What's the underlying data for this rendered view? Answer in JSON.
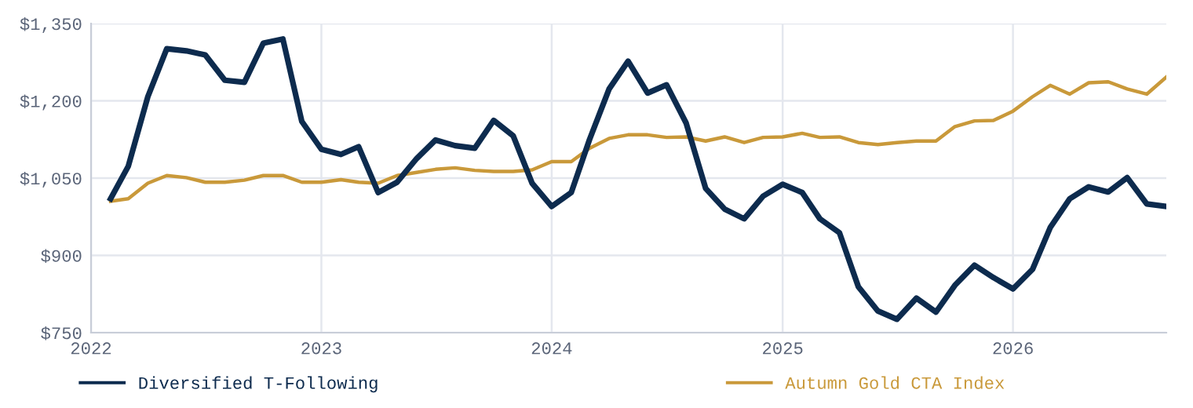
{
  "chart_data": {
    "type": "line",
    "x": [
      "2022-02",
      "2022-03",
      "2022-04",
      "2022-05",
      "2022-06",
      "2022-07",
      "2022-08",
      "2022-09",
      "2022-10",
      "2022-11",
      "2022-12",
      "2023-01",
      "2023-02",
      "2023-03",
      "2023-04",
      "2023-05",
      "2023-06",
      "2023-07",
      "2023-08",
      "2023-09",
      "2023-10",
      "2023-11",
      "2023-12",
      "2024-01",
      "2024-02",
      "2024-03",
      "2024-04",
      "2024-05",
      "2024-06",
      "2024-07",
      "2024-08",
      "2024-09",
      "2024-10",
      "2024-11",
      "2024-12",
      "2025-01",
      "2025-02",
      "2025-03",
      "2025-04",
      "2025-05",
      "2025-06",
      "2025-07",
      "2025-08",
      "2025-09",
      "2025-10",
      "2025-11",
      "2025-12",
      "2026-01",
      "2026-02",
      "2026-03",
      "2026-04",
      "2026-05",
      "2026-06",
      "2026-07",
      "2026-08",
      "2026-09"
    ],
    "series": [
      {
        "name": "Diversified T-Following",
        "color": "#0d2b4e",
        "values": [
          1010,
          1073,
          1208,
          1301,
          1297,
          1289,
          1240,
          1236,
          1312,
          1320,
          1160,
          1106,
          1096,
          1111,
          1022,
          1042,
          1088,
          1124,
          1113,
          1108,
          1162,
          1132,
          1040,
          995,
          1022,
          1125,
          1223,
          1277,
          1215,
          1231,
          1157,
          1030,
          990,
          971,
          1015,
          1038,
          1022,
          971,
          944,
          839,
          792,
          776,
          817,
          790,
          842,
          881,
          857,
          835,
          873,
          954,
          1010,
          1033,
          1023,
          1051,
          1000,
          995
        ]
      },
      {
        "name": "Autumn Gold CTA Index",
        "color": "#c9993a",
        "values": [
          1005,
          1010,
          1040,
          1055,
          1051,
          1042,
          1042,
          1046,
          1055,
          1055,
          1042,
          1042,
          1047,
          1042,
          1040,
          1055,
          1061,
          1067,
          1070,
          1065,
          1063,
          1063,
          1066,
          1082,
          1082,
          1108,
          1127,
          1134,
          1134,
          1129,
          1130,
          1122,
          1130,
          1119,
          1129,
          1130,
          1137,
          1129,
          1130,
          1119,
          1115,
          1119,
          1122,
          1122,
          1150,
          1161,
          1162,
          1180,
          1208,
          1230,
          1213,
          1235,
          1237,
          1223,
          1213,
          1246
        ]
      }
    ],
    "xlim": [
      "2022-01",
      "2026-09"
    ],
    "xticks": [
      {
        "value": "2022-01",
        "label": "2022"
      },
      {
        "value": "2023-01",
        "label": "2023"
      },
      {
        "value": "2024-01",
        "label": "2024"
      },
      {
        "value": "2025-01",
        "label": "2025"
      },
      {
        "value": "2026-01",
        "label": "2026"
      }
    ],
    "ylim": [
      750,
      1350
    ],
    "yticks": [
      {
        "value": 750,
        "label": "$750"
      },
      {
        "value": 900,
        "label": "$900"
      },
      {
        "value": 1050,
        "label": "$1,050"
      },
      {
        "value": 1200,
        "label": "$1,200"
      },
      {
        "value": 1350,
        "label": "$1,350"
      }
    ],
    "grid": true,
    "legend": "bottom",
    "marker": "none",
    "line_style": "solid"
  }
}
